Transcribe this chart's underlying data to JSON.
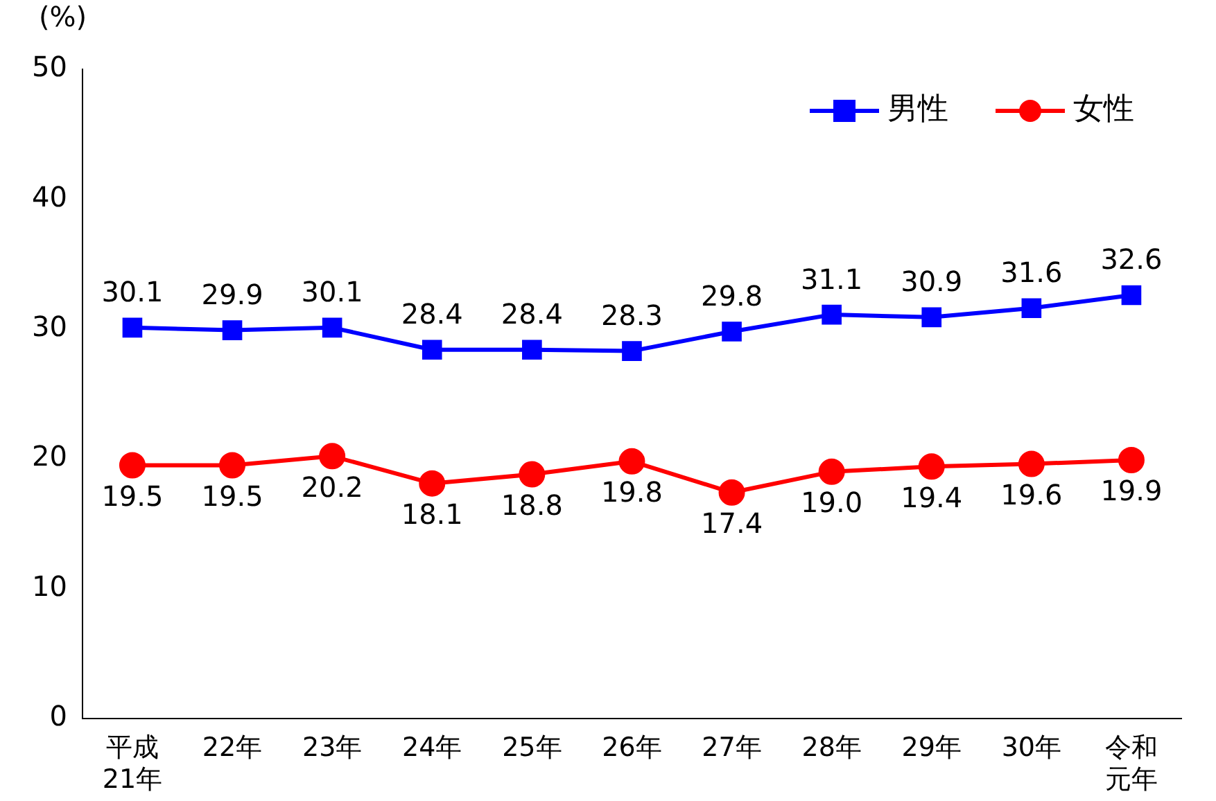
{
  "chart_data": {
    "type": "line",
    "ylabel": "(%)",
    "categories": [
      "平成21年",
      "22年",
      "23年",
      "24年",
      "25年",
      "26年",
      "27年",
      "28年",
      "29年",
      "30年",
      "令和元年"
    ],
    "series": [
      {
        "name": "男性",
        "color": "#0000ff",
        "marker": "square",
        "values": [
          30.1,
          29.9,
          30.1,
          28.4,
          28.4,
          28.3,
          29.8,
          31.1,
          30.9,
          31.6,
          32.6
        ],
        "value_labels": [
          "30.1",
          "29.9",
          "30.1",
          "28.4",
          "28.4",
          "28.3",
          "29.8",
          "31.1",
          "30.9",
          "31.6",
          "32.6"
        ]
      },
      {
        "name": "女性",
        "color": "#ff0000",
        "marker": "circle",
        "values": [
          19.5,
          19.5,
          20.2,
          18.1,
          18.8,
          19.8,
          17.4,
          19.0,
          19.4,
          19.6,
          19.9
        ],
        "value_labels": [
          "19.5",
          "19.5",
          "20.2",
          "18.1",
          "18.8",
          "19.8",
          "17.4",
          "19.0",
          "19.4",
          "19.6",
          "19.9"
        ]
      }
    ],
    "ylim": [
      0,
      50
    ],
    "yticks": [
      0,
      10,
      20,
      30,
      40,
      50
    ],
    "grid": false,
    "legend": "top right",
    "line_style": "solid"
  }
}
